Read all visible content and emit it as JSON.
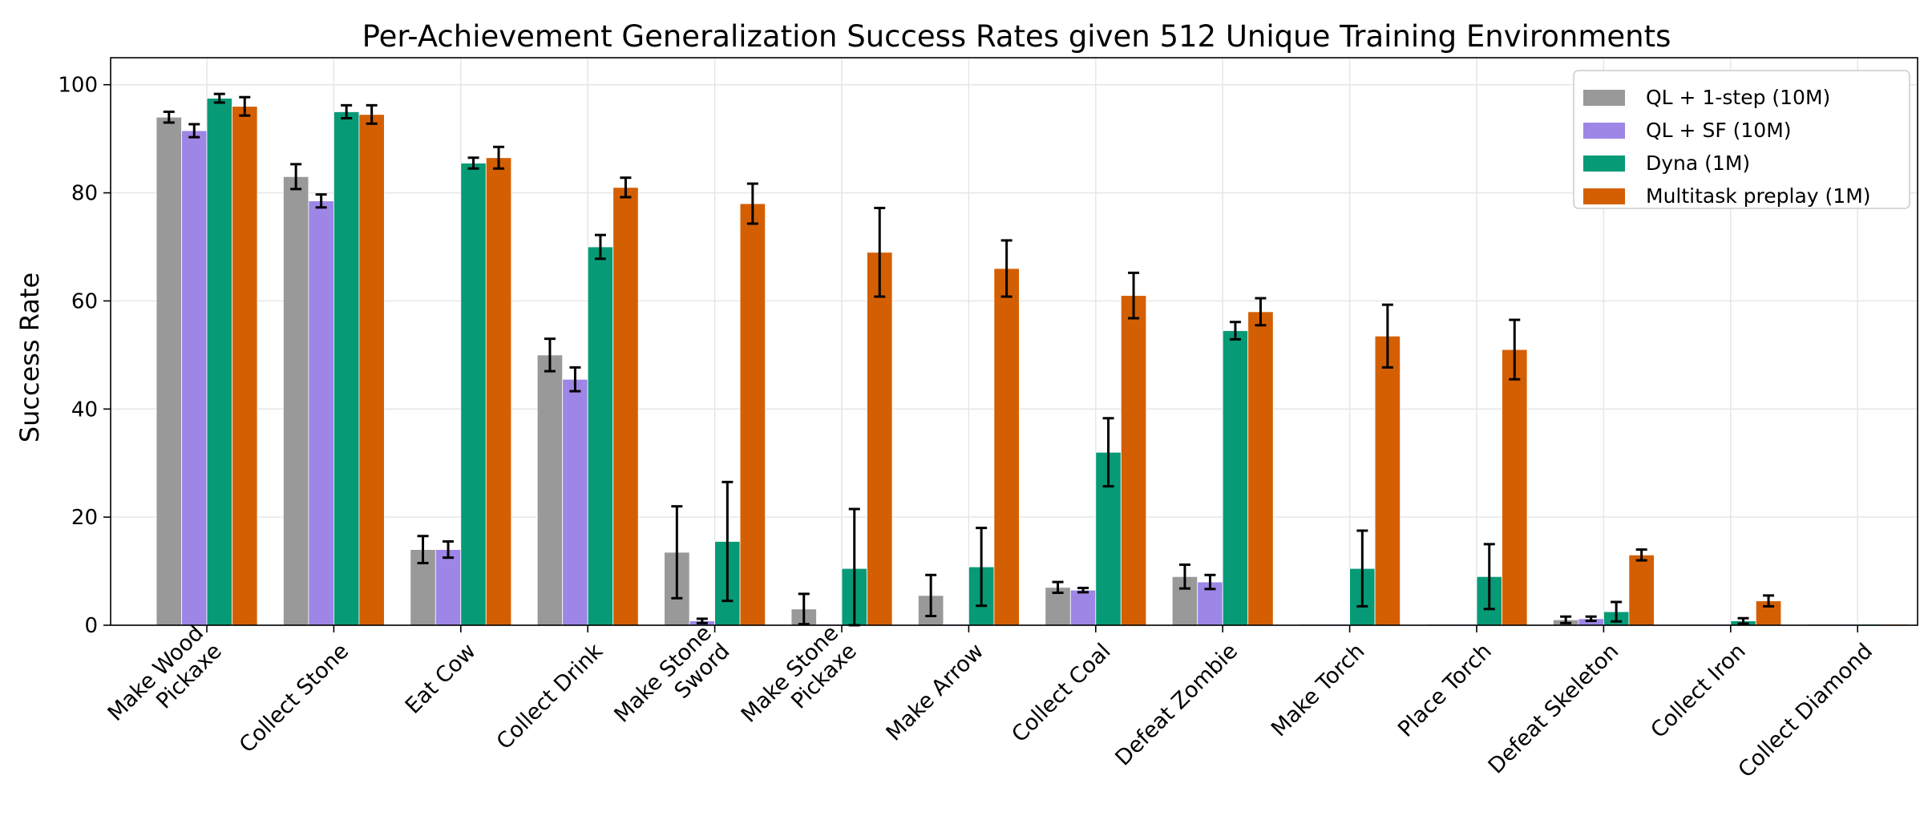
{
  "chart_data": {
    "type": "bar",
    "title": "Per-Achievement Generalization Success Rates given 512 Unique Training Environments",
    "xlabel": "",
    "ylabel": "Success Rate",
    "ylim": [
      0,
      105
    ],
    "yticks": [
      0,
      20,
      40,
      60,
      80,
      100
    ],
    "grid": true,
    "legend_position": "top-right",
    "categories": [
      [
        "Make Wood",
        "Pickaxe"
      ],
      [
        "Collect Stone"
      ],
      [
        "Eat Cow"
      ],
      [
        "Collect Drink"
      ],
      [
        "Make Stone",
        "Sword"
      ],
      [
        "Make Stone",
        "Pickaxe"
      ],
      [
        "Make Arrow"
      ],
      [
        "Collect Coal"
      ],
      [
        "Defeat Zombie"
      ],
      [
        "Make Torch"
      ],
      [
        "Place Torch"
      ],
      [
        "Defeat Skeleton"
      ],
      [
        "Collect Iron"
      ],
      [
        "Collect Diamond"
      ]
    ],
    "series": [
      {
        "name": "QL + 1-step (10M)",
        "color": "#999999",
        "values": [
          94,
          83,
          14,
          50,
          13.5,
          3,
          5.5,
          7,
          9,
          0.2,
          0.2,
          1,
          0.2,
          0.2
        ],
        "errors": [
          1,
          2.3,
          2.5,
          3,
          8.5,
          2.8,
          3.8,
          1,
          2.2,
          0,
          0,
          0.6,
          0,
          0
        ]
      },
      {
        "name": "QL + SF (10M)",
        "color": "#9d86e6",
        "values": [
          91.5,
          78.5,
          14,
          45.5,
          0.8,
          0.2,
          0.2,
          6.5,
          8,
          0.2,
          0.2,
          1.2,
          0.2,
          0.2
        ],
        "errors": [
          1.2,
          1.2,
          1.5,
          2.2,
          0.4,
          0,
          0,
          0.4,
          1.3,
          0,
          0,
          0.4,
          0,
          0
        ]
      },
      {
        "name": "Dyna (1M)",
        "color": "#079a76",
        "values": [
          97.5,
          95,
          85.5,
          70,
          15.5,
          10.5,
          10.8,
          32,
          54.5,
          10.5,
          9,
          2.5,
          0.8,
          0.2
        ],
        "errors": [
          0.8,
          1.2,
          1,
          2.2,
          11,
          11,
          7.2,
          6.3,
          1.6,
          7,
          6,
          1.8,
          0.5,
          0
        ]
      },
      {
        "name": "Multitask preplay (1M)",
        "color": "#d45f02",
        "values": [
          96,
          94.5,
          86.5,
          81,
          78,
          69,
          66,
          61,
          58,
          53.5,
          51,
          13,
          4.5,
          0.2
        ],
        "errors": [
          1.7,
          1.7,
          2,
          1.8,
          3.7,
          8.2,
          5.2,
          4.2,
          2.5,
          5.8,
          5.5,
          1,
          1,
          0
        ]
      }
    ]
  }
}
